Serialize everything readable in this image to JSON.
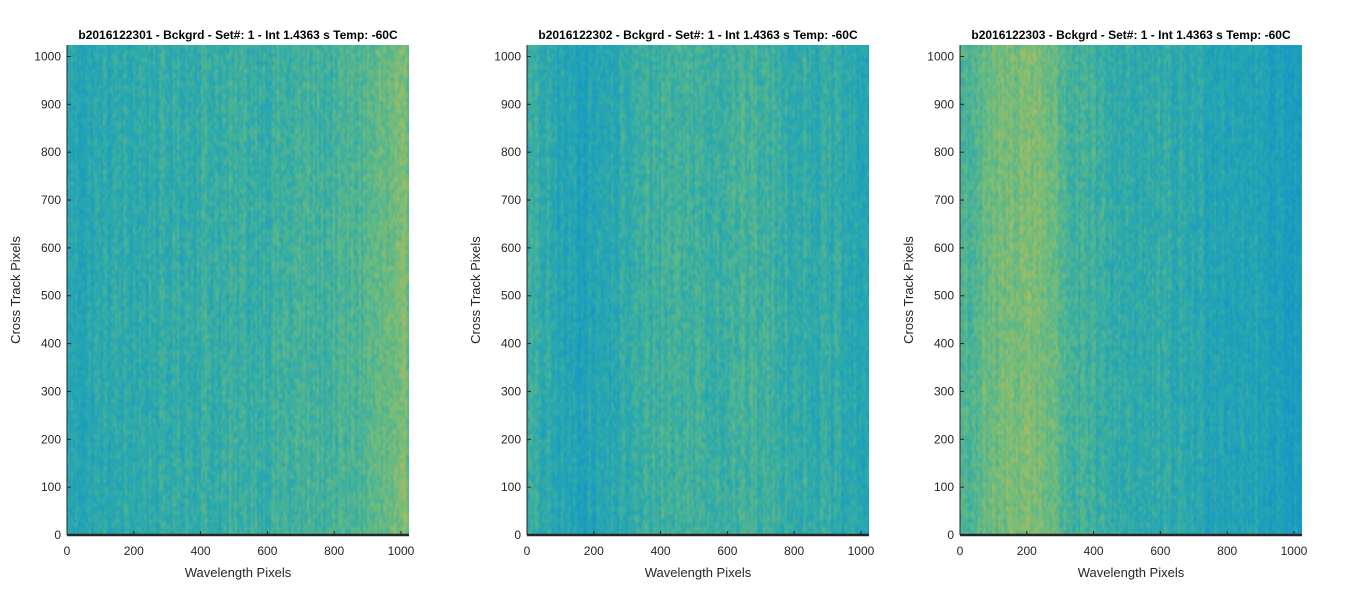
{
  "chart_data": [
    {
      "type": "heatmap",
      "title": "b2016122301 - Bckgrd - Set#: 1 - Int 1.4363 s Temp: -60C",
      "xlabel": "Wavelength Pixels",
      "ylabel": "Cross Track Pixels",
      "xlim": [
        0,
        1024
      ],
      "ylim": [
        0,
        1024
      ],
      "xticks": [
        0,
        200,
        400,
        600,
        800,
        1000
      ],
      "yticks": [
        0,
        100,
        200,
        300,
        400,
        500,
        600,
        700,
        800,
        900,
        1000
      ],
      "colormap": [
        "#1295c9",
        "#2aa9ae",
        "#6cbc7e",
        "#c8bd52"
      ],
      "column_profile": [
        0.3,
        0.28,
        0.32,
        0.33,
        0.34,
        0.36,
        0.37,
        0.38,
        0.4,
        0.4,
        0.41,
        0.42,
        0.43,
        0.44,
        0.46,
        0.46,
        0.48,
        0.52,
        0.58,
        0.64,
        0.66
      ]
    },
    {
      "type": "heatmap",
      "title": "b2016122302 - Bckgrd - Set#: 1 - Int 1.4363 s Temp: -60C",
      "xlabel": "Wavelength Pixels",
      "ylabel": "Cross Track Pixels",
      "xlim": [
        0,
        1024
      ],
      "ylim": [
        0,
        1024
      ],
      "xticks": [
        0,
        200,
        400,
        600,
        800,
        1000
      ],
      "yticks": [
        0,
        100,
        200,
        300,
        400,
        500,
        600,
        700,
        800,
        900,
        1000
      ],
      "colormap": [
        "#1295c9",
        "#2aa9ae",
        "#6cbc7e",
        "#c8bd52"
      ],
      "column_profile": [
        0.4,
        0.34,
        0.26,
        0.24,
        0.25,
        0.3,
        0.36,
        0.42,
        0.46,
        0.47,
        0.46,
        0.44,
        0.45,
        0.47,
        0.44,
        0.4,
        0.38,
        0.36,
        0.34,
        0.3,
        0.28
      ]
    },
    {
      "type": "heatmap",
      "title": "b2016122303 - Bckgrd - Set#: 1 - Int 1.4363 s Temp: -60C",
      "xlabel": "Wavelength Pixels",
      "ylabel": "Cross Track Pixels",
      "xlim": [
        0,
        1024
      ],
      "ylim": [
        0,
        1024
      ],
      "xticks": [
        0,
        200,
        400,
        600,
        800,
        1000
      ],
      "yticks": [
        0,
        100,
        200,
        300,
        400,
        500,
        600,
        700,
        800,
        900,
        1000
      ],
      "colormap": [
        "#1295c9",
        "#2aa9ae",
        "#6cbc7e",
        "#c8bd52"
      ],
      "column_profile": [
        0.5,
        0.56,
        0.64,
        0.72,
        0.74,
        0.7,
        0.54,
        0.44,
        0.4,
        0.38,
        0.36,
        0.34,
        0.33,
        0.32,
        0.3,
        0.28,
        0.26,
        0.24,
        0.22,
        0.18,
        0.12
      ]
    }
  ]
}
